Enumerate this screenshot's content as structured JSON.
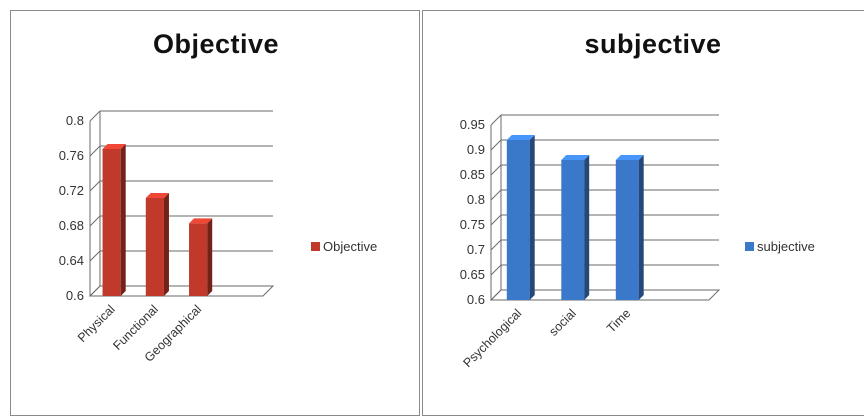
{
  "chart_data": [
    {
      "type": "bar",
      "title": "Objective",
      "categories": [
        "Physical",
        "Functional",
        "Geographical"
      ],
      "series": [
        {
          "name": "Objective",
          "values": [
            0.768,
            0.712,
            0.683
          ]
        }
      ],
      "yticks": [
        "0.6",
        "0.64",
        "0.68",
        "0.72",
        "0.76",
        "0.8"
      ],
      "ylim": [
        0.6,
        0.8
      ],
      "ystep": 0.04,
      "slots": 4,
      "legend": "right",
      "grid": true,
      "color": "#c0392b"
    },
    {
      "type": "bar",
      "title": "subjective",
      "categories": [
        "Psychological",
        "social",
        "Time"
      ],
      "series": [
        {
          "name": "subjective",
          "values": [
            0.92,
            0.88,
            0.88
          ]
        }
      ],
      "yticks": [
        "0.6",
        "0.65",
        "0.7",
        "0.75",
        "0.8",
        "0.85",
        "0.9",
        "0.95"
      ],
      "ylim": [
        0.6,
        0.95
      ],
      "ystep": 0.05,
      "slots": 4,
      "legend": "right",
      "grid": true,
      "color": "#3a78c9"
    }
  ]
}
